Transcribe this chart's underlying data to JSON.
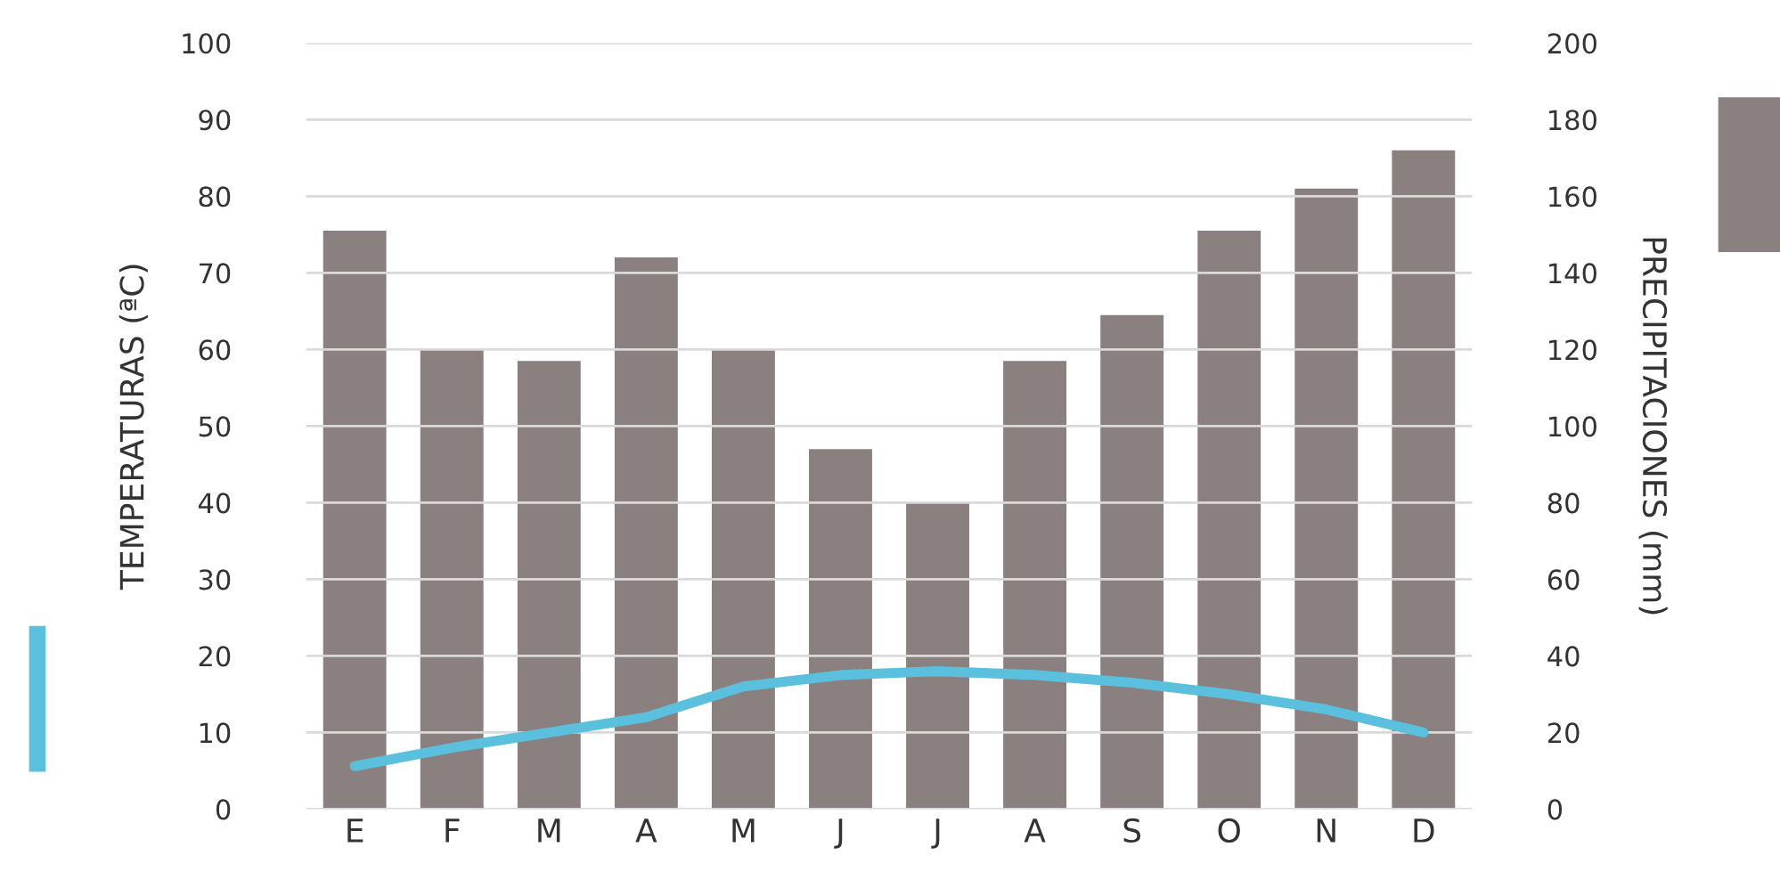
{
  "chart_data": {
    "type": "bar",
    "categories": [
      "E",
      "F",
      "M",
      "A",
      "M",
      "J",
      "J",
      "A",
      "S",
      "O",
      "N",
      "D"
    ],
    "ylabel": "TEMPERATURAS (ªC)",
    "y2label": "PRECIPITACIONES (mm)",
    "ylim": [
      0,
      100
    ],
    "yticks": [
      0,
      10,
      20,
      30,
      40,
      50,
      60,
      70,
      80,
      90,
      100
    ],
    "y2lim": [
      0,
      200
    ],
    "y2ticks": [
      0,
      20,
      40,
      60,
      80,
      100,
      120,
      140,
      160,
      180,
      200
    ],
    "grid": "y",
    "series": [
      {
        "axis": "y2",
        "color": "#8a8080",
        "values": [
          151,
          120,
          117,
          144,
          120,
          94,
          80,
          117,
          129,
          151,
          162,
          172
        ]
      },
      {
        "type": "line",
        "color": "#5bc0de",
        "values": [
          5.6,
          8,
          10,
          12,
          16,
          17.5,
          18,
          17.5,
          16.5,
          15,
          13,
          10
        ]
      }
    ]
  }
}
